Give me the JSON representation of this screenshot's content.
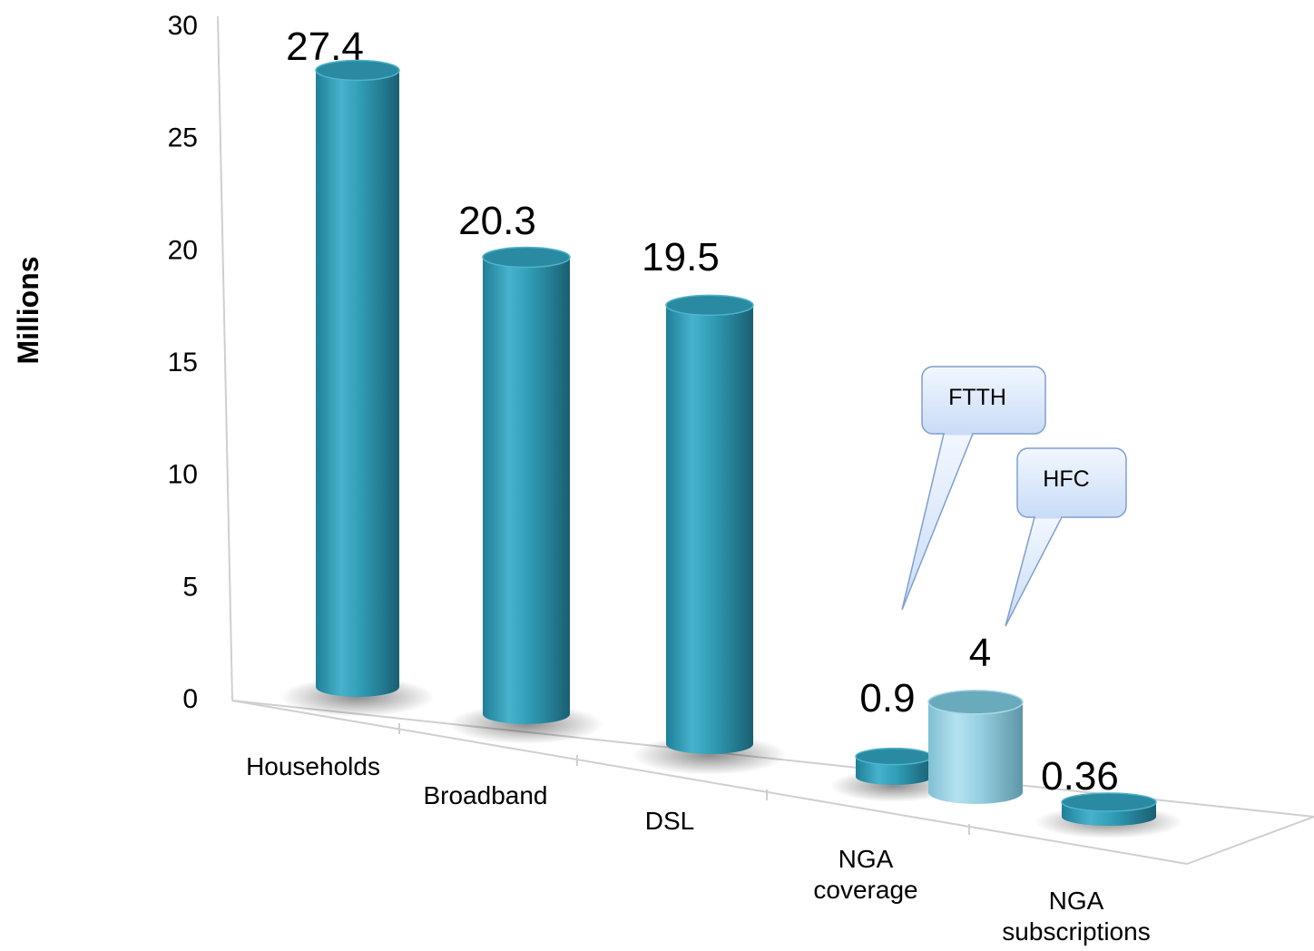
{
  "chart_data": {
    "type": "bar",
    "style": "3d-cylinder",
    "ylabel": "Millions",
    "ylim": [
      0,
      30
    ],
    "yticks": [
      0,
      5,
      10,
      15,
      20,
      25,
      30
    ],
    "categories": [
      [
        "Households"
      ],
      [
        "Broadband"
      ],
      [
        "DSL"
      ],
      [
        "NGA",
        "coverage"
      ],
      [
        "NGA",
        "subscriptions"
      ]
    ],
    "bars": [
      {
        "category_index": 0,
        "value": 27.4,
        "label": "27.4",
        "color": "#2f9bb5"
      },
      {
        "category_index": 1,
        "value": 20.3,
        "label": "20.3",
        "color": "#2f9bb5"
      },
      {
        "category_index": 2,
        "value": 19.5,
        "label": "19.5",
        "color": "#2f9bb5"
      },
      {
        "category_index": 3,
        "value": 0.9,
        "label": "0.9",
        "color": "#2f9bb5",
        "segment": "FTTH"
      },
      {
        "category_index": 3,
        "value": 4,
        "label": "4",
        "color": "#8fcbdf",
        "segment": "HFC"
      },
      {
        "category_index": 4,
        "value": 0.36,
        "label": "0.36",
        "color": "#2f9bb5"
      }
    ],
    "callouts": [
      {
        "text": "FTTH",
        "points_to": "0.9"
      },
      {
        "text": "HFC",
        "points_to": "4"
      }
    ],
    "grid": false,
    "legend": "none"
  }
}
